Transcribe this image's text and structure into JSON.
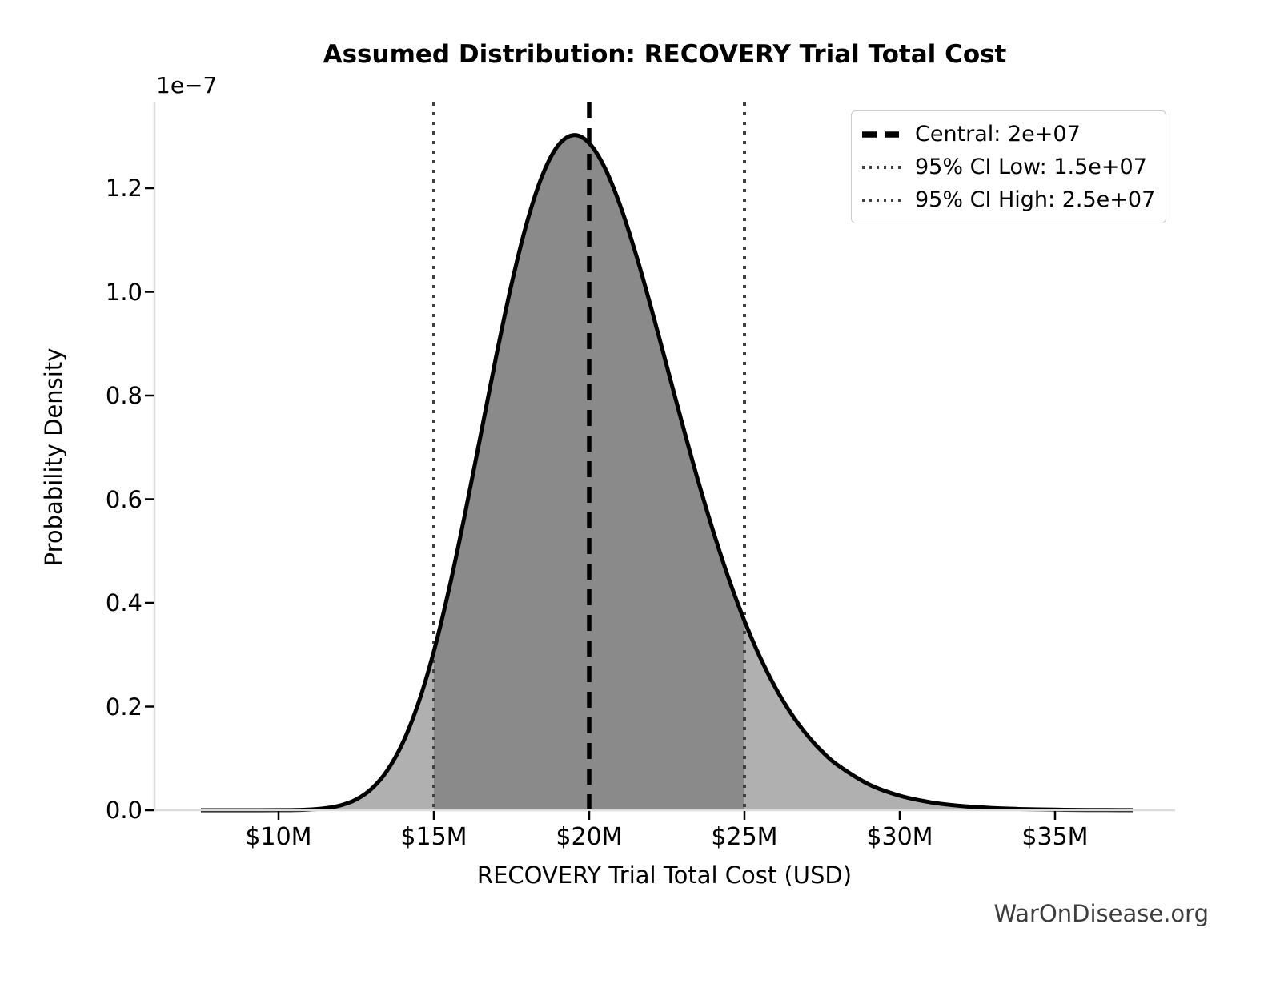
{
  "chart_data": {
    "type": "area",
    "title": "Assumed Distribution: RECOVERY Trial Total Cost",
    "xlabel": "RECOVERY Trial Total Cost (USD)",
    "ylabel": "Probability Density",
    "y_offset_label": "1e−7",
    "x_tick_labels": [
      "$10M",
      "$15M",
      "$20M",
      "$25M",
      "$30M",
      "$35M"
    ],
    "x_tick_values_musd": [
      10,
      15,
      20,
      25,
      30,
      35
    ],
    "y_tick_labels": [
      "0.0",
      "0.2",
      "0.4",
      "0.6",
      "0.8",
      "1.0",
      "1.2"
    ],
    "y_tick_values_1e7": [
      0.0,
      0.2,
      0.4,
      0.6,
      0.8,
      1.0,
      1.2
    ],
    "xlim_musd": [
      6.0,
      38.9
    ],
    "ylim_1e7": [
      0,
      1.365
    ],
    "grid": false,
    "central_musd": 20,
    "ci_low_musd": 15,
    "ci_high_musd": 25,
    "curve": {
      "x_musd": [
        7.5,
        8,
        9,
        10,
        10.5,
        11,
        11.5,
        12,
        12.5,
        13,
        13.5,
        14,
        14.5,
        15,
        15.5,
        16,
        16.5,
        17,
        17.5,
        18,
        18.5,
        19,
        19.5,
        20,
        20.5,
        21,
        21.5,
        22,
        22.5,
        23,
        23.5,
        24,
        24.5,
        25,
        25.5,
        26,
        26.5,
        27,
        27.5,
        28,
        29,
        30,
        31,
        32,
        33,
        34,
        35,
        36,
        37.5
      ],
      "density_1e7": [
        0,
        0,
        0,
        0.0001,
        0.0004,
        0.0014,
        0.0038,
        0.0094,
        0.0207,
        0.0416,
        0.0766,
        0.1302,
        0.2063,
        0.3065,
        0.4296,
        0.5708,
        0.7219,
        0.8739,
        1.0149,
        1.1349,
        1.2258,
        1.2824,
        1.3024,
        1.2869,
        1.2397,
        1.1664,
        1.0737,
        0.9684,
        0.857,
        0.7451,
        0.6373,
        0.5371,
        0.4459,
        0.3654,
        0.2956,
        0.2362,
        0.1869,
        0.1462,
        0.1133,
        0.0871,
        0.0501,
        0.028,
        0.0152,
        0.0081,
        0.0042,
        0.0022,
        0.0011,
        0.0005,
        0.0002
      ],
      "peak_density_1e7": 1.3,
      "peak_x_musd": 19.6
    },
    "legend": {
      "position": "upper right",
      "items": [
        {
          "label": "Central: 2e+07",
          "style": "dashed",
          "color": "#000000"
        },
        {
          "label": "95% CI Low: 1.5e+07",
          "style": "dotted",
          "color": "#404040"
        },
        {
          "label": "95% CI High: 2.5e+07",
          "style": "dotted",
          "color": "#404040"
        }
      ]
    },
    "colors": {
      "fill_light": "#b0b0b0",
      "fill_dark": "#8a8a8a",
      "curve": "#000000",
      "central_line": "#000000",
      "ci_line": "#404040",
      "spine": "#dcdcdc",
      "tick": "#000000",
      "text": "#000000",
      "watermark": "#3d3d3d"
    }
  },
  "page": {
    "watermark": "WarOnDisease.org"
  }
}
